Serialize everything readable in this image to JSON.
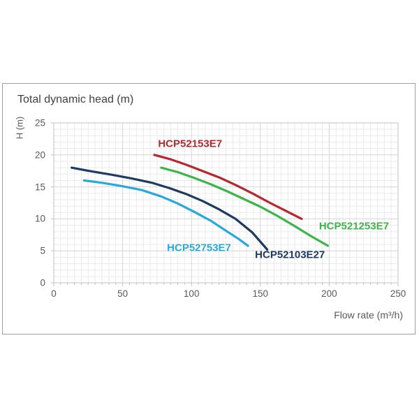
{
  "chart_data": {
    "type": "line",
    "title": "Total dynamic head (m)",
    "xlabel": "Flow rate (m³/h)",
    "ylabel": "H (m)",
    "xlim": [
      0,
      250
    ],
    "ylim": [
      0,
      25
    ],
    "x_ticks": [
      0,
      50,
      100,
      150,
      200,
      250
    ],
    "y_ticks": [
      0,
      5,
      10,
      15,
      20,
      25
    ],
    "x_major_step": 50,
    "x_minor_step": 5,
    "y_major_step": 5,
    "y_minor_step": 1,
    "grid": "major and minor gridlines on, light gray",
    "legend": "inline colored labels next to each curve",
    "colors": {
      "grid_major": "#d4d4d4",
      "grid_minor": "#eaeaea",
      "axis_border": "#c2c2c2",
      "tick_text": "#595959",
      "title_text": "#3f3f3f",
      "frame_border": "#9e9e9e"
    },
    "series": [
      {
        "name": "HCP52153E7",
        "color": "#b4282e",
        "label_at": {
          "x": 99,
          "y": 21.7
        },
        "points": [
          [
            73,
            20
          ],
          [
            85,
            19.3
          ],
          [
            97,
            18.4
          ],
          [
            109,
            17.4
          ],
          [
            121,
            16.4
          ],
          [
            133,
            15.2
          ],
          [
            145,
            13.9
          ],
          [
            157,
            12.5
          ],
          [
            169,
            11.2
          ],
          [
            180,
            10
          ]
        ]
      },
      {
        "name": "HCP521253E7",
        "color": "#3ab54a",
        "label_at": {
          "x": 218,
          "y": 8.8
        },
        "points": [
          [
            78,
            18
          ],
          [
            90,
            17.3
          ],
          [
            102,
            16.4
          ],
          [
            114,
            15.4
          ],
          [
            126,
            14.3
          ],
          [
            138,
            13.1
          ],
          [
            150,
            11.9
          ],
          [
            162,
            10.5
          ],
          [
            174,
            9.0
          ],
          [
            186,
            7.4
          ],
          [
            199,
            5.8
          ]
        ]
      },
      {
        "name": "HCP52753E7",
        "color": "#29a8e0",
        "label_at": {
          "x": 105.5,
          "y": 5.5
        },
        "points": [
          [
            22,
            16
          ],
          [
            36,
            15.6
          ],
          [
            50,
            15.1
          ],
          [
            64,
            14.5
          ],
          [
            78,
            13.5
          ],
          [
            90,
            12.4
          ],
          [
            102,
            11.1
          ],
          [
            114,
            9.7
          ],
          [
            126,
            8.0
          ],
          [
            134,
            6.9
          ],
          [
            141,
            5.8
          ]
        ]
      },
      {
        "name": "HCP52103E27",
        "color": "#1c3a63",
        "label_at": {
          "x": 171.5,
          "y": 4.35
        },
        "points": [
          [
            13,
            18
          ],
          [
            28,
            17.4
          ],
          [
            42,
            16.9
          ],
          [
            57,
            16.3
          ],
          [
            72,
            15.6
          ],
          [
            84,
            14.8
          ],
          [
            96,
            13.9
          ],
          [
            108,
            12.8
          ],
          [
            120,
            11.5
          ],
          [
            132,
            10.0
          ],
          [
            144,
            7.9
          ],
          [
            155,
            5.2
          ]
        ]
      }
    ]
  }
}
